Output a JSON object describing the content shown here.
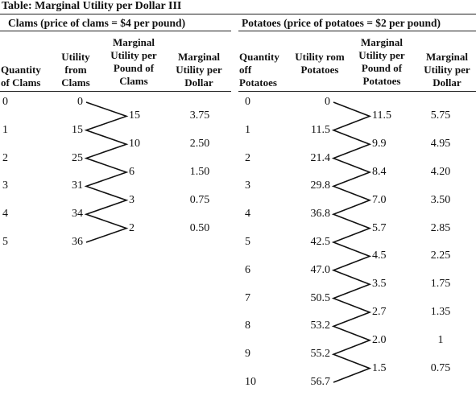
{
  "title": "Table: Marginal Utility per Dollar III",
  "clams": {
    "group_label": "Clams (price of clams = $4 per pound)",
    "headers": [
      "Quantity of Clams",
      "Utility from Clams",
      "Marginal Utility per Pound of Clams",
      "Marginal Utility per Dollar"
    ],
    "quantity": [
      "0",
      "1",
      "2",
      "3",
      "4",
      "5"
    ],
    "utility": [
      "0",
      "15",
      "25",
      "31",
      "34",
      "36"
    ],
    "marginal_utility": [
      "15",
      "10",
      "6",
      "3",
      "2"
    ],
    "mu_per_dollar": [
      "3.75",
      "2.50",
      "1.50",
      "0.75",
      "0.50"
    ]
  },
  "potatoes": {
    "group_label": "Potatoes (price of potatoes = $2 per pound)",
    "headers": [
      "Quantity off Potatoes",
      "Utility rom Potatoes",
      "Marginal Utility per Pound of Potatoes",
      "Marginal Utility per Dollar"
    ],
    "quantity": [
      "0",
      "1",
      "2",
      "3",
      "4",
      "5",
      "6",
      "7",
      "8",
      "9",
      "10"
    ],
    "utility": [
      "0",
      "11.5",
      "21.4",
      "29.8",
      "36.8",
      "42.5",
      "47.0",
      "50.5",
      "53.2",
      "55.2",
      "56.7"
    ],
    "marginal_utility": [
      "11.5",
      "9.9",
      "8.4",
      "7.0",
      "5.7",
      "4.5",
      "3.5",
      "2.7",
      "2.0",
      "1.5"
    ],
    "mu_per_dollar": [
      "5.75",
      "4.95",
      "4.20",
      "3.50",
      "2.85",
      "2.25",
      "1.75",
      "1.35",
      "1",
      "0.75"
    ]
  }
}
